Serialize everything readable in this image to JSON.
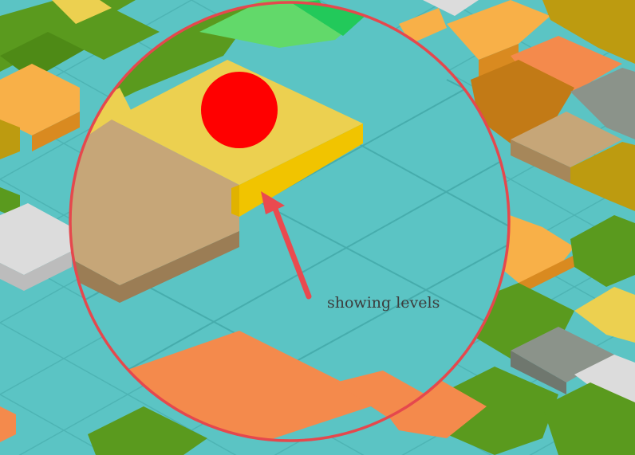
{
  "callout": {
    "text": "showing levels",
    "ring_color": "#e5484d",
    "arrow_color": "#ea4a4f",
    "text_color": "#3c3c3c"
  },
  "marker": {
    "icon": "red-dot-marker-icon",
    "color": "#ff0000"
  },
  "palette": {
    "water": "#5bc4c4",
    "water_grid": "#43a9a9",
    "grass": "#5a9a1e",
    "grass_bright": "#62d96a",
    "sand": "#c6a678",
    "yellow": "#ecd050",
    "yellow_side": "#f1c400",
    "orange": "#f8b048",
    "coral": "#f48a4c",
    "olive": "#bd9b10",
    "stone": "#8b938a",
    "snow": "#dcdcdc"
  }
}
